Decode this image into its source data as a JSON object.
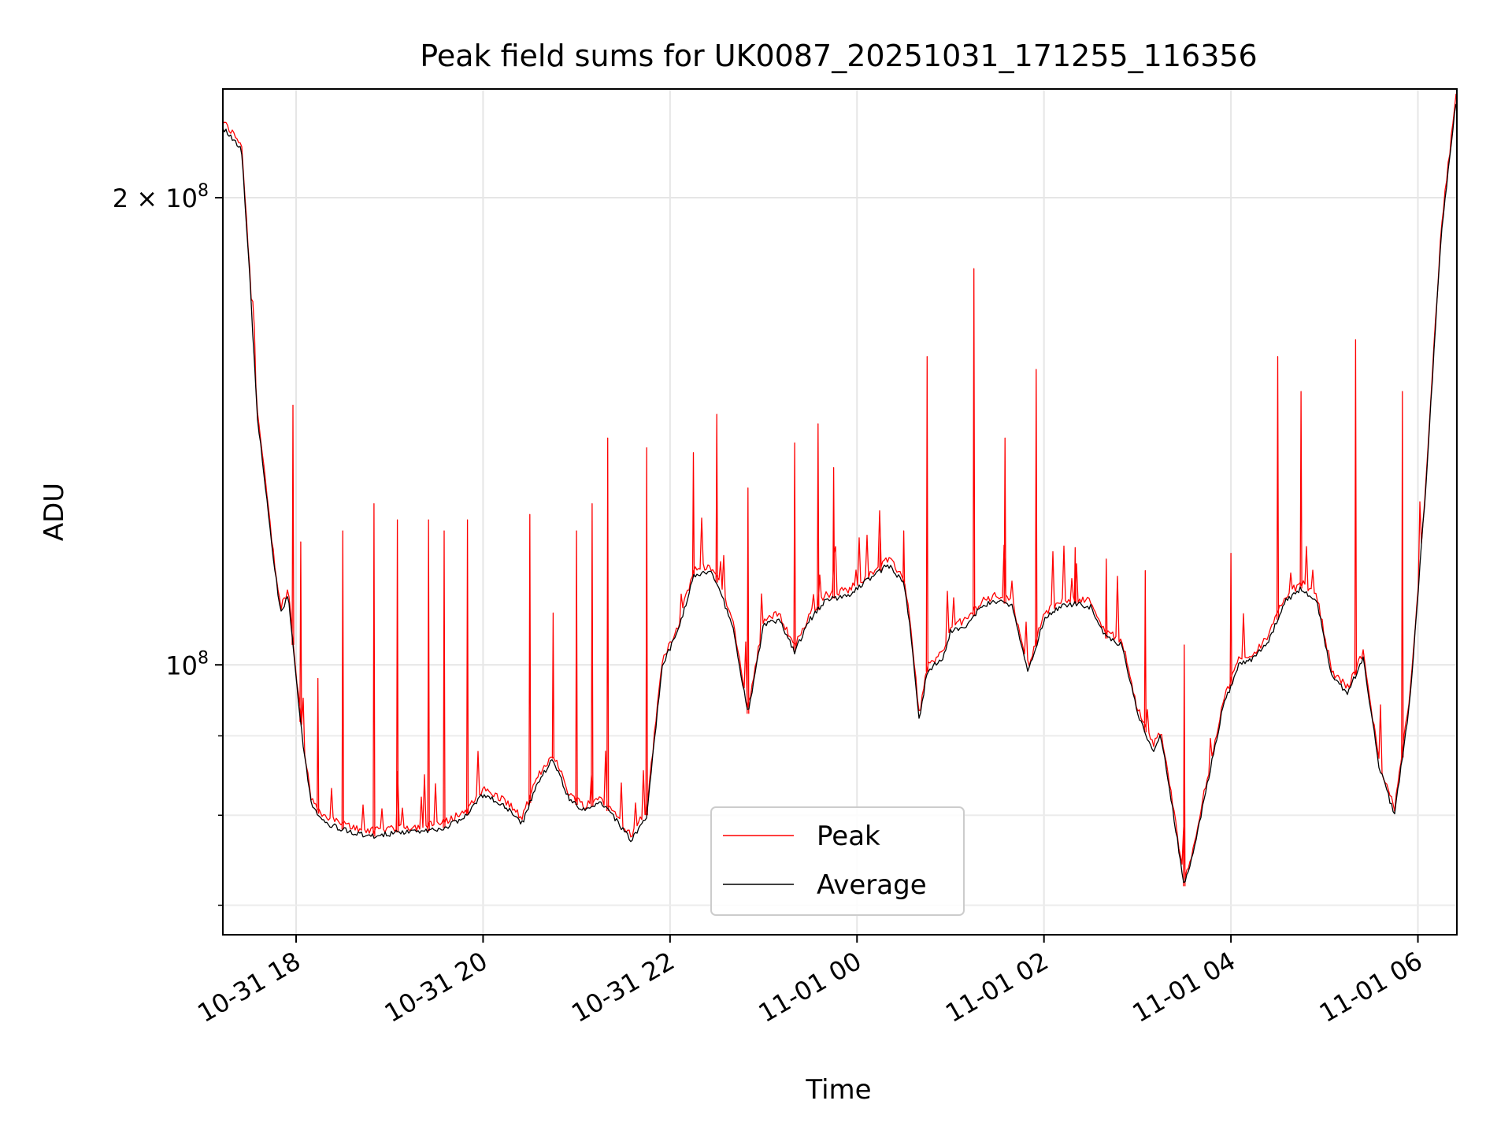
{
  "chart_data": {
    "type": "line",
    "title": "Peak field sums for UK0087_20251031_171255_116356",
    "xlabel": "Time",
    "ylabel": "ADU",
    "x_range": [
      "2025-10-31 17:13",
      "2025-11-01 06:25"
    ],
    "xticks": [
      {
        "t": "2025-10-31 18:00",
        "label": "10-31 18"
      },
      {
        "t": "2025-10-31 20:00",
        "label": "10-31 20"
      },
      {
        "t": "2025-10-31 22:00",
        "label": "10-31 22"
      },
      {
        "t": "2025-11-01 00:00",
        "label": "11-01 00"
      },
      {
        "t": "2025-11-01 02:00",
        "label": "11-01 02"
      },
      {
        "t": "2025-11-01 04:00",
        "label": "11-01 04"
      },
      {
        "t": "2025-11-01 06:00",
        "label": "11-01 06"
      }
    ],
    "y_scale": "log",
    "ylim": [
      67000000,
      235000000
    ],
    "yticks_major": [
      {
        "v": 100000000,
        "base": "10",
        "exp": "8",
        "mult": ""
      },
      {
        "v": 200000000,
        "base": "10",
        "exp": "8",
        "mult": "2 × "
      }
    ],
    "yticks_minor": [
      70000000,
      80000000,
      90000000
    ],
    "grid": true,
    "legend": {
      "placement": "lower-center",
      "entries": [
        "Peak",
        "Average"
      ]
    },
    "colors": {
      "Peak": "#ff0000",
      "Average": "#000000"
    },
    "series": [
      {
        "name": "Average",
        "points": [
          [
            "2025-10-31 17:13",
            222000000
          ],
          [
            "2025-10-31 17:25",
            215000000
          ],
          [
            "2025-10-31 17:30",
            180000000
          ],
          [
            "2025-10-31 17:35",
            145000000
          ],
          [
            "2025-10-31 17:45",
            118000000
          ],
          [
            "2025-10-31 17:50",
            108000000
          ],
          [
            "2025-10-31 17:55",
            111000000
          ],
          [
            "2025-10-31 18:00",
            98000000
          ],
          [
            "2025-10-31 18:05",
            88000000
          ],
          [
            "2025-10-31 18:10",
            81000000
          ],
          [
            "2025-10-31 18:20",
            79000000
          ],
          [
            "2025-10-31 18:35",
            78000000
          ],
          [
            "2025-10-31 18:50",
            77500000
          ],
          [
            "2025-10-31 19:05",
            78000000
          ],
          [
            "2025-10-31 19:20",
            78000000
          ],
          [
            "2025-10-31 19:35",
            78500000
          ],
          [
            "2025-10-31 19:50",
            80000000
          ],
          [
            "2025-10-31 20:00",
            82500000
          ],
          [
            "2025-10-31 20:15",
            81000000
          ],
          [
            "2025-10-31 20:25",
            79000000
          ],
          [
            "2025-10-31 20:35",
            84000000
          ],
          [
            "2025-10-31 20:45",
            87000000
          ],
          [
            "2025-10-31 20:55",
            82000000
          ],
          [
            "2025-10-31 21:05",
            80500000
          ],
          [
            "2025-10-31 21:15",
            81500000
          ],
          [
            "2025-10-31 21:25",
            79500000
          ],
          [
            "2025-10-31 21:35",
            77000000
          ],
          [
            "2025-10-31 21:45",
            80000000
          ],
          [
            "2025-10-31 21:55",
            100000000
          ],
          [
            "2025-10-31 22:05",
            105000000
          ],
          [
            "2025-10-31 22:15",
            114000000
          ],
          [
            "2025-10-31 22:25",
            115000000
          ],
          [
            "2025-10-31 22:30",
            113000000
          ],
          [
            "2025-10-31 22:40",
            106000000
          ],
          [
            "2025-10-31 22:50",
            93000000
          ],
          [
            "2025-10-31 23:00",
            106000000
          ],
          [
            "2025-10-31 23:10",
            107000000
          ],
          [
            "2025-10-31 23:20",
            102000000
          ],
          [
            "2025-10-31 23:30",
            107000000
          ],
          [
            "2025-10-31 23:40",
            110000000
          ],
          [
            "2025-10-31 23:55",
            111000000
          ],
          [
            "2025-11-01 00:10",
            114000000
          ],
          [
            "2025-11-01 00:20",
            116000000
          ],
          [
            "2025-11-01 00:30",
            113000000
          ],
          [
            "2025-11-01 00:35",
            104000000
          ],
          [
            "2025-11-01 00:40",
            92000000
          ],
          [
            "2025-11-01 00:45",
            99000000
          ],
          [
            "2025-11-01 00:55",
            101000000
          ],
          [
            "2025-11-01 01:00",
            105000000
          ],
          [
            "2025-11-01 01:10",
            106000000
          ],
          [
            "2025-11-01 01:20",
            109000000
          ],
          [
            "2025-11-01 01:30",
            110000000
          ],
          [
            "2025-11-01 01:40",
            109000000
          ],
          [
            "2025-11-01 01:45",
            103000000
          ],
          [
            "2025-11-01 01:50",
            99000000
          ],
          [
            "2025-11-01 02:00",
            107000000
          ],
          [
            "2025-11-01 02:10",
            109000000
          ],
          [
            "2025-11-01 02:20",
            109500000
          ],
          [
            "2025-11-01 02:30",
            109000000
          ],
          [
            "2025-11-01 02:40",
            104000000
          ],
          [
            "2025-11-01 02:50",
            103000000
          ],
          [
            "2025-11-01 03:00",
            93000000
          ],
          [
            "2025-11-01 03:10",
            88000000
          ],
          [
            "2025-11-01 03:15",
            90000000
          ],
          [
            "2025-11-01 03:20",
            84000000
          ],
          [
            "2025-11-01 03:30",
            72000000
          ],
          [
            "2025-11-01 03:35",
            75000000
          ],
          [
            "2025-11-01 03:45",
            84000000
          ],
          [
            "2025-11-01 03:55",
            94000000
          ],
          [
            "2025-11-01 04:05",
            100000000
          ],
          [
            "2025-11-01 04:15",
            101000000
          ],
          [
            "2025-11-01 04:25",
            104000000
          ],
          [
            "2025-11-01 04:35",
            110000000
          ],
          [
            "2025-11-01 04:45",
            112000000
          ],
          [
            "2025-11-01 04:55",
            110000000
          ],
          [
            "2025-11-01 05:05",
            98000000
          ],
          [
            "2025-11-01 05:15",
            96000000
          ],
          [
            "2025-11-01 05:25",
            101000000
          ],
          [
            "2025-11-01 05:35",
            86000000
          ],
          [
            "2025-11-01 05:45",
            80000000
          ],
          [
            "2025-11-01 05:55",
            95000000
          ],
          [
            "2025-11-01 06:05",
            130000000
          ],
          [
            "2025-11-01 06:15",
            190000000
          ],
          [
            "2025-11-01 06:25",
            233000000
          ]
        ]
      },
      {
        "name": "Peak",
        "spikes": [
          [
            "2025-10-31 17:58",
            147000000
          ],
          [
            "2025-10-31 18:03",
            120000000
          ],
          [
            "2025-10-31 18:14",
            98000000
          ],
          [
            "2025-10-31 18:30",
            122000000
          ],
          [
            "2025-10-31 18:50",
            127000000
          ],
          [
            "2025-10-31 19:05",
            124000000
          ],
          [
            "2025-10-31 19:25",
            124000000
          ],
          [
            "2025-10-31 19:35",
            122000000
          ],
          [
            "2025-10-31 19:50",
            124000000
          ],
          [
            "2025-10-31 20:30",
            125000000
          ],
          [
            "2025-10-31 20:45",
            108000000
          ],
          [
            "2025-10-31 21:00",
            122000000
          ],
          [
            "2025-10-31 21:10",
            127000000
          ],
          [
            "2025-10-31 21:20",
            140000000
          ],
          [
            "2025-10-31 21:45",
            138000000
          ],
          [
            "2025-10-31 22:15",
            137000000
          ],
          [
            "2025-10-31 22:30",
            145000000
          ],
          [
            "2025-10-31 22:50",
            130000000
          ],
          [
            "2025-10-31 23:20",
            139000000
          ],
          [
            "2025-10-31 23:35",
            143000000
          ],
          [
            "2025-10-31 23:45",
            134000000
          ],
          [
            "2025-11-01 00:15",
            121000000
          ],
          [
            "2025-11-01 00:30",
            122000000
          ],
          [
            "2025-11-01 00:45",
            158000000
          ],
          [
            "2025-11-01 01:15",
            180000000
          ],
          [
            "2025-11-01 01:35",
            140000000
          ],
          [
            "2025-11-01 01:55",
            155000000
          ],
          [
            "2025-11-01 02:20",
            119000000
          ],
          [
            "2025-11-01 02:40",
            117000000
          ],
          [
            "2025-11-01 03:05",
            115000000
          ],
          [
            "2025-11-01 03:30",
            103000000
          ],
          [
            "2025-11-01 04:00",
            118000000
          ],
          [
            "2025-11-01 04:30",
            158000000
          ],
          [
            "2025-11-01 04:45",
            150000000
          ],
          [
            "2025-11-01 05:20",
            162000000
          ],
          [
            "2025-11-01 05:50",
            150000000
          ]
        ]
      }
    ]
  }
}
